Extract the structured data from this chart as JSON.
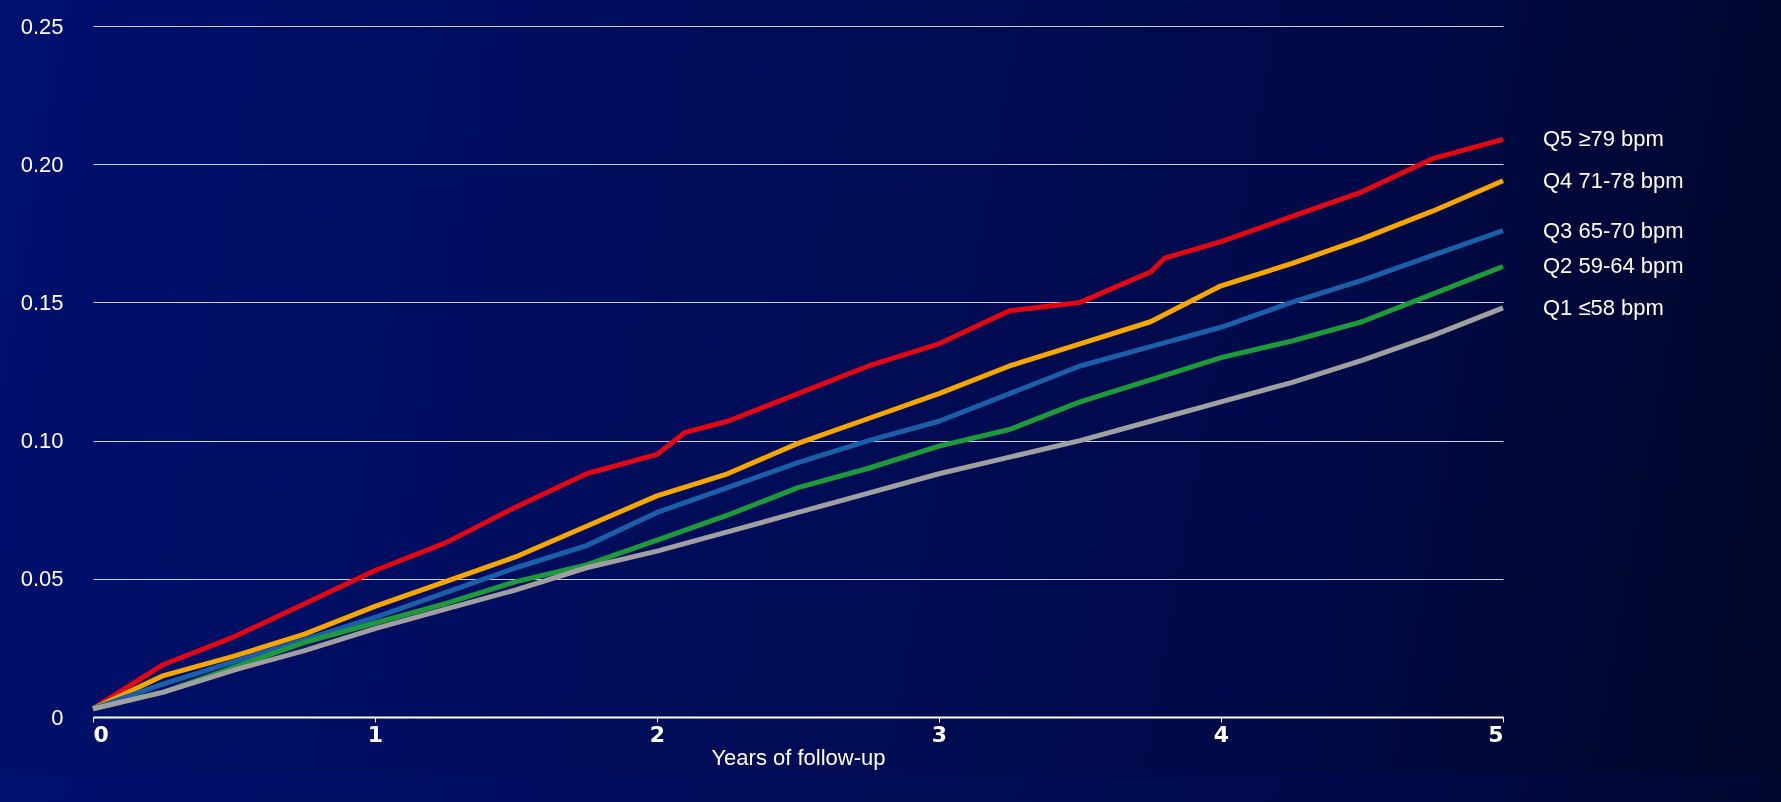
{
  "chart_data": {
    "type": "line",
    "xlabel": "Years of follow-up",
    "xlim": [
      0,
      5
    ],
    "xticks": [
      0,
      1,
      2,
      3,
      4,
      5
    ],
    "ylim": [
      0,
      0.25
    ],
    "yticks": [
      0,
      0.05,
      {
        "value": 0.1,
        "label": "0.10"
      },
      0.15,
      {
        "value": 0.2,
        "label": "0.20"
      },
      0.25
    ],
    "grid": "y",
    "x": [
      0,
      0.25,
      0.5,
      0.75,
      1,
      1.25,
      1.5,
      1.75,
      2,
      2.25,
      2.5,
      2.75,
      3,
      3.25,
      3.5,
      3.75,
      4,
      4.25,
      4.5,
      4.75,
      5
    ],
    "series": [
      {
        "name": "Q5 ≥79 bpm",
        "color": "#e30613",
        "x": [
          0,
          0.25,
          0.5,
          0.75,
          1,
          1.25,
          1.5,
          1.75,
          2,
          2.1,
          2.25,
          2.5,
          2.75,
          3,
          3.25,
          3.5,
          3.75,
          3.8,
          4,
          4.25,
          4.5,
          4.75,
          5
        ],
        "values": [
          0.003,
          0.019,
          0.029,
          0.041,
          0.053,
          0.063,
          0.076,
          0.088,
          0.095,
          0.103,
          0.107,
          0.117,
          0.127,
          0.135,
          0.147,
          0.15,
          0.161,
          0.166,
          0.172,
          0.181,
          0.19,
          0.202,
          0.209
        ]
      },
      {
        "name": "Q4 71-78 bpm",
        "color": "#f7a600",
        "values": [
          0.003,
          0.015,
          0.022,
          0.03,
          0.04,
          0.049,
          0.058,
          0.069,
          0.08,
          0.088,
          0.099,
          0.108,
          0.117,
          0.127,
          0.135,
          0.143,
          0.156,
          0.164,
          0.173,
          0.183,
          0.194
        ]
      },
      {
        "name": "Q3 65-70 bpm",
        "color": "#1a5fa8",
        "values": [
          0.003,
          0.012,
          0.02,
          0.028,
          0.036,
          0.045,
          0.054,
          0.062,
          0.074,
          0.083,
          0.092,
          0.1,
          0.107,
          0.117,
          0.127,
          0.134,
          0.141,
          0.15,
          0.158,
          0.167,
          0.176
        ]
      },
      {
        "name": "Q2 59-64 bpm",
        "color": "#1e9a3a",
        "values": [
          0.003,
          0.009,
          0.018,
          0.027,
          0.034,
          0.041,
          0.049,
          0.055,
          0.064,
          0.073,
          0.083,
          0.09,
          0.098,
          0.104,
          0.114,
          0.122,
          0.13,
          0.136,
          0.143,
          0.153,
          0.163
        ]
      },
      {
        "name": "Q1 ≤58 bpm",
        "color": "#a0a0a0",
        "values": [
          0.003,
          0.009,
          0.017,
          0.024,
          0.032,
          0.039,
          0.046,
          0.054,
          0.06,
          0.067,
          0.074,
          0.081,
          0.088,
          0.094,
          0.1,
          0.107,
          0.114,
          0.121,
          0.129,
          0.138,
          0.148
        ]
      }
    ]
  }
}
